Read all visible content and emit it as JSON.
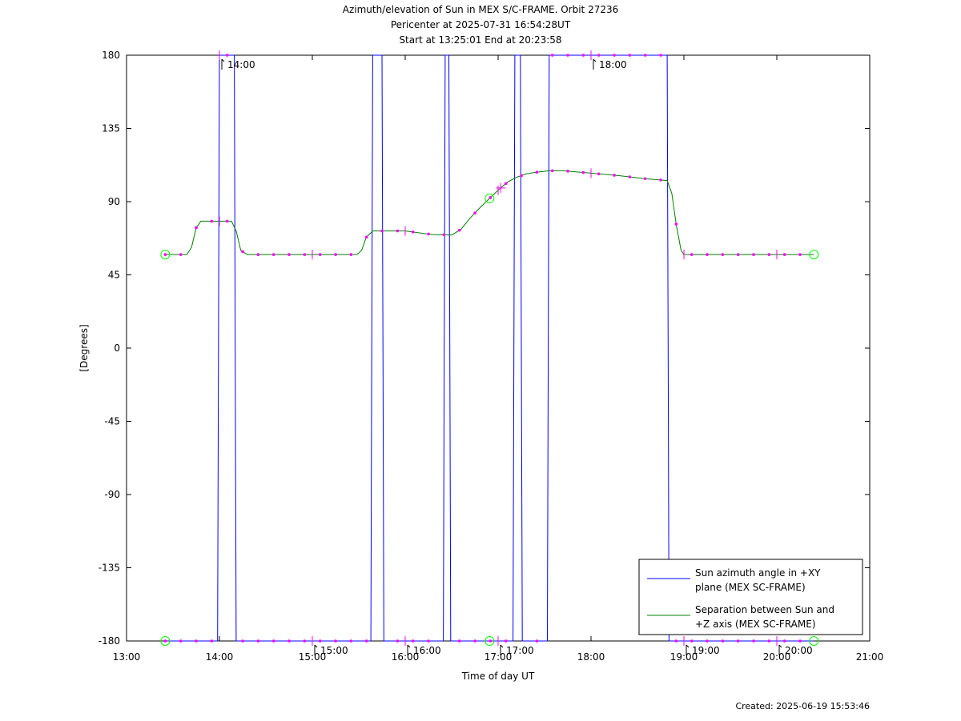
{
  "title_lines": [
    "Azimuth/elevation of Sun in MEX S/C-FRAME.  Orbit 27236",
    "Pericenter at 2025-07-31 16:54:28UT",
    "Start at 13:25:01 End at 20:23:58"
  ],
  "footer": "Created: 2025-06-19 15:53:46",
  "chart_data": {
    "type": "line",
    "xlabel": "Time of day UT",
    "ylabel": "[Degrees]",
    "xlim": [
      13,
      21
    ],
    "ylim": [
      -180,
      180
    ],
    "x_ticks": [
      13,
      14,
      15,
      16,
      17,
      18,
      19,
      20,
      21
    ],
    "x_tick_labels": [
      "13:00",
      "14:00",
      "15:00",
      "16:00",
      "17:00",
      "18:00",
      "19:00",
      "20:00",
      "21:00"
    ],
    "y_ticks": [
      180,
      135,
      90,
      45,
      0,
      -45,
      -90,
      -135,
      -180
    ],
    "y_tick_labels": [
      "180",
      "135",
      "90",
      "45",
      "0",
      "-45",
      "-90",
      "-135",
      "-180"
    ],
    "hour_markers": [
      {
        "x": 14.0,
        "y": 180,
        "label": "14:00"
      },
      {
        "x": 18.0,
        "y": 180,
        "label": "18:00"
      },
      {
        "x": 15.0,
        "y": -180,
        "label": "15:00"
      },
      {
        "x": 16.0,
        "y": -180,
        "label": "16:00"
      },
      {
        "x": 17.0,
        "y": -180,
        "label": "17:00"
      },
      {
        "x": 19.0,
        "y": -180,
        "label": "19:00"
      },
      {
        "x": 20.0,
        "y": -180,
        "label": "20:00"
      }
    ],
    "pericenter_x": 16.908,
    "start_x": 13.417,
    "end_x": 20.399,
    "series": [
      {
        "name": "Sun azimuth angle in +XY plane (MEX SC-FRAME)",
        "legend_lines": [
          "Sun azimuth angle in +XY",
          "plane (MEX SC-FRAME)"
        ],
        "color": "#0000ff",
        "x": [
          13.417,
          13.98,
          13.99,
          14.0,
          14.16,
          14.17,
          14.18,
          15.63,
          15.64,
          15.65,
          15.75,
          15.76,
          15.77,
          16.41,
          16.42,
          16.43,
          16.47,
          16.48,
          16.49,
          17.16,
          17.17,
          17.18,
          17.24,
          17.25,
          17.26,
          17.53,
          17.54,
          17.55,
          18.82,
          18.83,
          18.84,
          20.399
        ],
        "y": [
          -180,
          -180,
          0,
          180,
          180,
          0,
          -180,
          -180,
          0,
          180,
          180,
          0,
          -180,
          -180,
          0,
          180,
          180,
          0,
          -180,
          -180,
          0,
          180,
          180,
          0,
          -180,
          -180,
          0,
          180,
          180,
          0,
          -180,
          -180
        ]
      },
      {
        "name": "Separation between Sun and +Z axis (MEX SC-FRAME)",
        "legend_lines": [
          "Separation between Sun and",
          "+Z axis (MEX SC-FRAME)"
        ],
        "color": "#008000",
        "x": [
          13.417,
          13.65,
          13.7,
          13.75,
          13.8,
          14.0,
          14.13,
          14.18,
          14.23,
          14.3,
          15.3,
          15.48,
          15.53,
          15.58,
          15.65,
          16.0,
          16.2,
          16.3,
          16.5,
          16.6,
          16.7,
          16.8,
          16.908,
          17.0,
          17.1,
          17.2,
          17.3,
          17.4,
          17.55,
          17.7,
          18.0,
          18.3,
          18.6,
          18.82,
          18.87,
          18.92,
          18.97,
          19.0,
          19.5,
          20.0,
          20.399
        ],
        "y": [
          57.5,
          57.5,
          62,
          74,
          78,
          78,
          78,
          72,
          60,
          57.5,
          57.5,
          57.5,
          60,
          68,
          72,
          72,
          70.5,
          69.8,
          69.5,
          73,
          80,
          86,
          92,
          97,
          102,
          105,
          107,
          108,
          109,
          109,
          107.5,
          106,
          104,
          103,
          95,
          75,
          60,
          57.5,
          57.5,
          57.5,
          57.5
        ]
      }
    ]
  }
}
